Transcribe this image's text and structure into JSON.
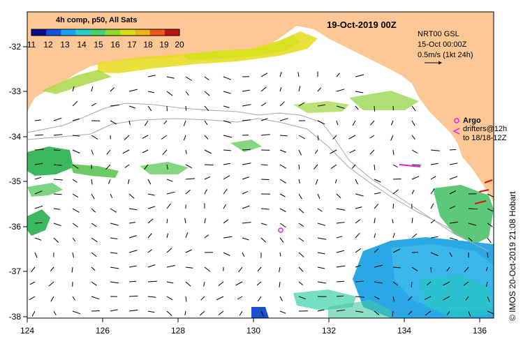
{
  "map": {
    "date_title": "19-Oct-2019 00Z",
    "legend_title": "4h comp, p50, All Sats",
    "colorbar_ticks": [
      "11",
      "12",
      "13",
      "14",
      "15",
      "16",
      "17",
      "18",
      "19",
      "20"
    ],
    "colorbar_colors": [
      "#0a0a8c",
      "#1450e6",
      "#1ea0f0",
      "#28d2c8",
      "#46d26e",
      "#8cdc28",
      "#dcdc14",
      "#f0b414",
      "#f05a14",
      "#be140a"
    ],
    "current_info": {
      "line1": "NRT00 GSL",
      "line2": "15-Oct 00:00Z",
      "line3": "0.5m/s (1kt 24h)"
    },
    "argo_label": "Argo",
    "drifter_line1": "drifters@12h",
    "drifter_line2": "to 18/18-12Z",
    "credit": "© IMOS 20-Oct-2019 21:08 Hobart",
    "x_ticks": [
      "124",
      "126",
      "128",
      "130",
      "132",
      "134",
      "136"
    ],
    "y_ticks": [
      "-32",
      "-33",
      "-34",
      "-35",
      "-36",
      "-37",
      "-38"
    ],
    "colors": {
      "land": "#fdc896",
      "argo": "#e020e0",
      "drifter": "#e020e0",
      "bathymetry": "#a8a8a8"
    }
  }
}
